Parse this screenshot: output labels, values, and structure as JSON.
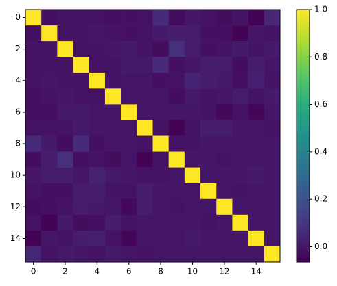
{
  "chart_data": {
    "type": "heatmap",
    "colormap": "viridis",
    "z": [
      [
        1,
        -0.02,
        -0.01,
        -0.01,
        -0.01,
        -0.02,
        -0.02,
        -0.01,
        0.06,
        -0.03,
        0.0,
        -0.01,
        -0.03,
        -0.01,
        -0.06,
        0.05
      ],
      [
        -0.02,
        1,
        -0.01,
        -0.01,
        0.0,
        -0.01,
        -0.02,
        -0.01,
        0.01,
        0.02,
        0.02,
        -0.02,
        -0.02,
        -0.06,
        0.0,
        -0.01
      ],
      [
        -0.01,
        -0.01,
        1,
        -0.01,
        -0.01,
        0.0,
        0.01,
        -0.01,
        -0.03,
        0.08,
        0.02,
        -0.02,
        -0.01,
        0.01,
        -0.01,
        0.01
      ],
      [
        -0.01,
        -0.01,
        -0.01,
        1,
        -0.01,
        -0.01,
        0.01,
        0.01,
        0.06,
        -0.02,
        0.0,
        0.02,
        0.02,
        -0.03,
        0.02,
        0.0
      ],
      [
        -0.01,
        0.0,
        -0.01,
        -0.01,
        1,
        -0.01,
        0.0,
        0.0,
        -0.02,
        -0.01,
        0.04,
        0.02,
        0.01,
        -0.02,
        0.03,
        -0.01
      ],
      [
        -0.02,
        -0.01,
        0.0,
        -0.01,
        -0.01,
        1,
        0.0,
        0.0,
        0.0,
        -0.03,
        0.01,
        -0.01,
        0.0,
        0.02,
        -0.01,
        0.01
      ],
      [
        -0.02,
        -0.02,
        0.01,
        0.01,
        0.0,
        0.0,
        1,
        0.0,
        0.0,
        0.0,
        0.0,
        -0.01,
        -0.04,
        -0.01,
        -0.05,
        0.0
      ],
      [
        -0.01,
        -0.01,
        -0.01,
        0.01,
        0.0,
        0.0,
        0.0,
        1,
        -0.01,
        -0.06,
        -0.01,
        0.02,
        0.02,
        0.0,
        0.0,
        -0.01
      ],
      [
        0.06,
        0.01,
        -0.03,
        0.06,
        -0.02,
        0.0,
        0.0,
        -0.01,
        1,
        -0.01,
        -0.01,
        0.0,
        0.0,
        0.0,
        0.0,
        0.0
      ],
      [
        -0.03,
        0.02,
        0.08,
        -0.02,
        -0.01,
        -0.03,
        0.0,
        -0.06,
        -0.01,
        1,
        0.0,
        0.0,
        -0.01,
        0.0,
        0.0,
        0.0
      ],
      [
        0.0,
        0.02,
        0.02,
        0.0,
        0.04,
        0.01,
        0.0,
        -0.01,
        -0.01,
        0.0,
        1,
        0.0,
        0.0,
        0.0,
        0.01,
        0.0
      ],
      [
        -0.01,
        -0.02,
        -0.02,
        0.02,
        0.02,
        -0.01,
        -0.01,
        0.02,
        0.0,
        0.0,
        0.0,
        1,
        0.0,
        -0.01,
        0.0,
        0.0
      ],
      [
        -0.03,
        -0.02,
        -0.01,
        0.02,
        0.01,
        0.0,
        -0.04,
        0.02,
        0.0,
        -0.01,
        0.0,
        0.0,
        1,
        0.0,
        0.0,
        0.0
      ],
      [
        -0.01,
        -0.06,
        0.01,
        -0.03,
        -0.02,
        0.02,
        -0.01,
        0.0,
        0.0,
        0.0,
        0.0,
        -0.01,
        0.0,
        1,
        0.0,
        0.0
      ],
      [
        -0.06,
        0.0,
        -0.01,
        0.02,
        0.03,
        -0.01,
        -0.05,
        0.0,
        0.0,
        0.0,
        0.01,
        0.0,
        0.0,
        0.0,
        1,
        0.0
      ],
      [
        0.05,
        -0.01,
        0.01,
        0.0,
        -0.01,
        0.01,
        0.0,
        -0.01,
        0.0,
        0.0,
        0.0,
        0.0,
        0.0,
        0.0,
        0.0,
        1
      ]
    ],
    "xlim": [
      -0.5,
      15.5
    ],
    "ylim": [
      15.5,
      -0.5
    ],
    "xticks": [
      0,
      2,
      4,
      6,
      8,
      10,
      12,
      14
    ],
    "yticks": [
      0,
      2,
      4,
      6,
      8,
      10,
      12,
      14
    ],
    "clim": [
      -0.065,
      1.0
    ],
    "colorbar_ticks": [
      {
        "value": 0.0,
        "label": "0.0"
      },
      {
        "value": 0.2,
        "label": "0.2"
      },
      {
        "value": 0.4,
        "label": "0.4"
      },
      {
        "value": 0.6,
        "label": "0.6"
      },
      {
        "value": 0.8,
        "label": "0.8"
      },
      {
        "value": 1.0,
        "label": "1.0"
      }
    ]
  }
}
